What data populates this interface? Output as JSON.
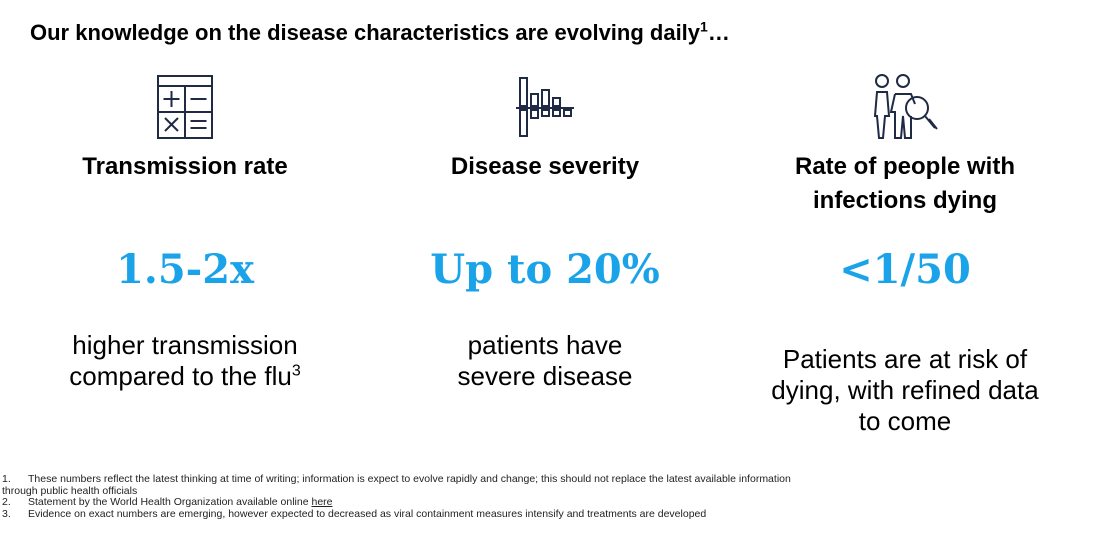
{
  "title": {
    "text": "Our knowledge on the disease characteristics are evolving daily",
    "sup": "1",
    "suffix": "…"
  },
  "metrics": [
    {
      "icon": "calculator-icon",
      "label": "Transmission rate",
      "value": "1.5-2x",
      "desc_line1": "higher transmission",
      "desc_line2": "compared to the flu",
      "desc_sup": "3"
    },
    {
      "icon": "bar-chart-icon",
      "label": "Disease severity",
      "value": "Up to 20%",
      "desc_line1": "patients have",
      "desc_line2": "severe disease"
    },
    {
      "icon": "people-search-icon",
      "label_line1": "Rate of people with",
      "label_line2": "infections dying",
      "value": "<1/50",
      "desc_line1": "Patients are at risk of",
      "desc_line2": "dying, with refined data",
      "desc_line3": "to come"
    }
  ],
  "footnotes": [
    {
      "num": "1.",
      "text": "These numbers reflect the latest thinking at time of writing; information is expect to evolve rapidly and change; this should not replace the latest available information",
      "text_cont": "through public health officials"
    },
    {
      "num": "2.",
      "text": "Statement by the World Health Organization available online ",
      "link": "here"
    },
    {
      "num": "3.",
      "text": "Evidence on exact numbers are emerging, however expected to decreased as viral containment measures intensify and treatments are developed"
    }
  ],
  "colors": {
    "accent": "#1aa3e8",
    "icon_stroke": "#1f2a44",
    "text": "#000000"
  }
}
